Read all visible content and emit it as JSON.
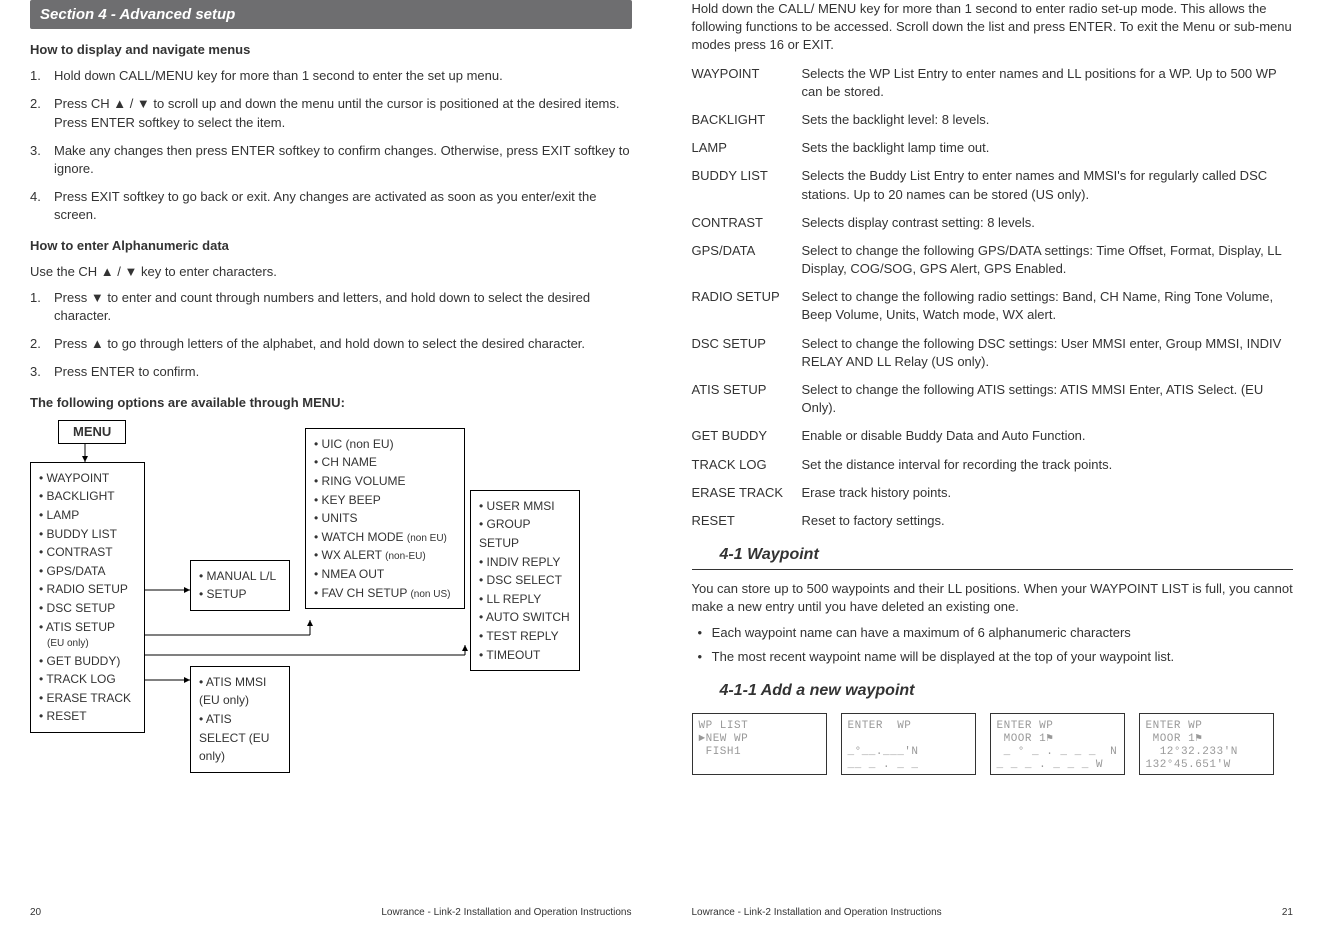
{
  "left": {
    "section_title": "Section 4 - Advanced setup",
    "sub1": "How to display and navigate menus",
    "steps1": [
      "Hold down CALL/MENU key for more than 1 second to enter the set up menu.",
      "Press CH ▲ / ▼ to scroll up and down the menu until the cursor is positioned at the desired items. Press ENTER softkey to select the item.",
      "Make any changes then press ENTER softkey to confirm changes. Otherwise, press EXIT softkey to ignore.",
      "Press EXIT softkey to go back or exit. Any changes are activated as soon as you enter/exit the screen."
    ],
    "sub2": "How to enter Alphanumeric data",
    "alpha_intro": "Use the CH ▲ / ▼ key to enter characters.",
    "steps2": [
      "Press ▼ to enter and count through numbers and letters, and hold down to select the desired character.",
      "Press ▲ to go through letters of the alphabet, and hold down to select the desired character.",
      "Press ENTER to confirm."
    ],
    "sub3": "The following options are available through MENU:",
    "menu_label": "MENU",
    "box_main": [
      "WAYPOINT",
      "BACKLIGHT",
      "LAMP",
      "BUDDY LIST",
      "CONTRAST",
      "GPS/DATA",
      "RADIO SETUP",
      "DSC SETUP",
      "ATIS SETUP",
      "GET BUDDY)",
      "TRACK LOG",
      "ERASE TRACK",
      "RESET"
    ],
    "box_main_note": "(EU only)",
    "box_b": [
      "MANUAL L/L",
      "SETUP"
    ],
    "box_c_items": [
      {
        "t": "UIC (non EU)"
      },
      {
        "t": "CH NAME"
      },
      {
        "t": "RING VOLUME"
      },
      {
        "t": "KEY BEEP"
      },
      {
        "t": "UNITS"
      },
      {
        "t": "WATCH MODE ",
        "s": "(non EU)"
      },
      {
        "t": "WX ALERT ",
        "s": "(non-EU)"
      },
      {
        "t": "NMEA OUT"
      },
      {
        "t": "FAV CH SETUP ",
        "s": "(non US)"
      }
    ],
    "box_d": [
      "USER MMSI",
      "GROUP SETUP",
      "INDIV REPLY",
      "DSC SELECT",
      "LL REPLY",
      "AUTO SWITCH",
      "TEST REPLY",
      "TIMEOUT"
    ],
    "box_e": [
      "ATIS MMSI (EU only)",
      "ATIS SELECT (EU only)"
    ],
    "footer_title": "Lowrance - Link-2 Installation and Operation Instructions",
    "page_num": "20"
  },
  "right": {
    "intro": "Hold down the CALL/ MENU key for more than 1 second to enter radio set-up mode. This allows the following functions to be accessed. Scroll down the list and press ENTER. To exit the Menu or sub-menu modes press 16 or EXIT.",
    "defs": [
      {
        "l": "WAYPOINT",
        "d": "Selects the WP List Entry to enter names and LL positions for a WP.  Up to 500 WP can be stored."
      },
      {
        "l": "BACKLIGHT",
        "d": "Sets the backlight level: 8 levels."
      },
      {
        "l": "LAMP",
        "d": "Sets the backlight lamp time out."
      },
      {
        "l": "BUDDY LIST",
        "d": "Selects the Buddy List Entry to enter names and MMSI's for regularly called DSC stations. Up to 20 names can be stored (US only)."
      },
      {
        "l": "CONTRAST",
        "d": "Selects display contrast setting: 8 levels."
      },
      {
        "l": "GPS/DATA",
        "d": "Select to change the following GPS/DATA settings: Time Offset, Format, Display, LL Display, COG/SOG, GPS Alert, GPS Enabled."
      },
      {
        "l": "RADIO SETUP",
        "d": "Select to change the following radio settings: Band, CH Name, Ring Tone Volume, Beep Volume, Units, Watch mode, WX alert."
      },
      {
        "l": "DSC SETUP",
        "d": "Select to change the following DSC settings: User MMSI enter, Group MMSI, INDIV RELAY AND LL Relay (US only)."
      },
      {
        "l": "ATIS SETUP",
        "d": "Select to change the following ATIS settings: ATIS MMSI Enter, ATIS Select. (EU Only)."
      },
      {
        "l": "GET BUDDY",
        "d": "Enable or disable Buddy Data and Auto Function."
      },
      {
        "l": "TRACK LOG",
        "d": "Set the distance interval for recording the track points."
      },
      {
        "l": "ERASE TRACK",
        "d": "Erase track history points."
      },
      {
        "l": "RESET",
        "d": "Reset to factory settings."
      }
    ],
    "sec41": "4-1 Waypoint",
    "wp_intro": "You can store up to 500 waypoints and their LL positions. When your WAYPOINT LIST is full, you cannot make a new entry until you have deleted an existing one.",
    "wp_bullets": [
      "Each waypoint name can have a maximum of 6 alphanumeric characters",
      "The most recent waypoint name will be displayed at the top of your waypoint list."
    ],
    "sec411": "4-1-1 Add a new waypoint",
    "lcd": [
      "WP LIST\n►NEW WP\n FISH1",
      "ENTER  WP\n\n_°__.___'N\n__ _ . _ _",
      "ENTER WP\n MOOR 1⚑\n _ ° _ . _ _ _  N\n_ _ _ . _ _ _ W",
      "ENTER WP\n MOOR 1⚑\n  12°32.233'N\n132°45.651'W"
    ],
    "footer_title": "Lowrance - Link-2 Installation and Operation Instructions",
    "page_num": "21"
  }
}
